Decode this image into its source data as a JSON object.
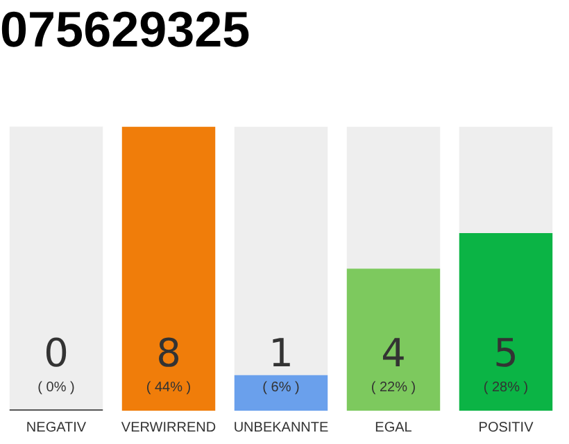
{
  "chart_data": {
    "type": "bar",
    "title": "075629325",
    "categories": [
      "NEGATIV",
      "VERWIRREND",
      "UNBEKANNTE",
      "EGAL",
      "POSITIV"
    ],
    "stacked": true,
    "series": [
      {
        "values": [
          0,
          8,
          1,
          4,
          5
        ],
        "colors": [
          "#555555",
          "#f07d0a",
          "#6aa0ec",
          "#7dc95e",
          "#0bb445"
        ],
        "value_labels": [
          "0",
          "8",
          "1",
          "4",
          "5"
        ]
      },
      {
        "values": [
          8,
          0,
          7,
          4,
          3
        ],
        "color": "#eeeeee"
      }
    ],
    "ylim": [
      0,
      8
    ],
    "tick_labels": "x",
    "grid": false,
    "legend": false,
    "annotations": [
      "( 0% )",
      "( 44% )",
      "( 6% )",
      "( 22% )",
      "( 28% )"
    ]
  }
}
